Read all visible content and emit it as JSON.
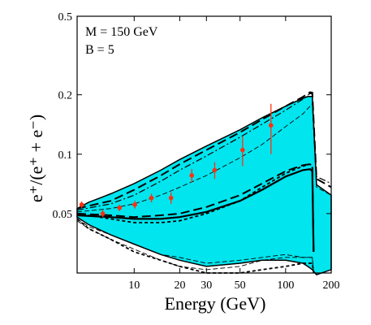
{
  "chart_data": {
    "type": "line",
    "xlabel": "Energy (GeV)",
    "ylabel": "e⁺/(e⁺ + e⁻)",
    "xscale": "log",
    "yscale": "log",
    "xlim": [
      4.2,
      200
    ],
    "ylim": [
      0.025,
      0.5
    ],
    "x_ticks": [
      10,
      20,
      30,
      50,
      100,
      200
    ],
    "y_ticks": [
      0.05,
      0.1,
      0.2,
      0.5
    ],
    "annotations": [
      {
        "text": "M = 150 GeV"
      },
      {
        "text": "B = 5"
      }
    ],
    "band": {
      "color": "#00e5ee",
      "x": [
        4.2,
        5,
        7,
        10,
        15,
        20,
        30,
        50,
        70,
        100,
        130,
        140,
        150,
        160,
        200
      ],
      "upper": [
        0.053,
        0.057,
        0.063,
        0.071,
        0.083,
        0.094,
        0.11,
        0.133,
        0.153,
        0.175,
        0.192,
        0.196,
        0.196,
        0.07,
        0.062
      ],
      "lower": [
        0.048,
        0.044,
        0.039,
        0.035,
        0.031,
        0.029,
        0.027,
        0.028,
        0.029,
        0.029,
        0.028,
        0.027,
        0.026,
        0.0245,
        0.026
      ]
    },
    "series": [
      {
        "style": "solid",
        "x": [
          4.2,
          7,
          10,
          15,
          20,
          30,
          50,
          70,
          100,
          130,
          145,
          150,
          153
        ],
        "y": [
          0.049,
          0.048,
          0.047,
          0.047,
          0.048,
          0.051,
          0.058,
          0.066,
          0.077,
          0.083,
          0.084,
          0.082,
          0.032
        ]
      },
      {
        "style": "dash",
        "x": [
          4.2,
          7,
          10,
          15,
          20,
          30,
          50,
          70,
          100,
          130,
          145,
          150,
          153
        ],
        "y": [
          0.05,
          0.049,
          0.048,
          0.049,
          0.05,
          0.054,
          0.062,
          0.071,
          0.082,
          0.088,
          0.089,
          0.087,
          0.032
        ]
      },
      {
        "style": "shortdash",
        "x": [
          4.2,
          7,
          10,
          15,
          20,
          30,
          50,
          70,
          100,
          130,
          145,
          150,
          153
        ],
        "y": [
          0.05,
          0.047,
          0.045,
          0.045,
          0.046,
          0.05,
          0.058,
          0.068,
          0.08,
          0.087,
          0.089,
          0.087,
          0.032
        ]
      },
      {
        "style": "dash",
        "x": [
          4.2,
          7,
          10,
          15,
          20,
          30,
          50,
          70,
          100,
          130,
          140,
          145,
          150,
          160,
          200
        ],
        "y": [
          0.053,
          0.058,
          0.066,
          0.078,
          0.089,
          0.105,
          0.129,
          0.15,
          0.175,
          0.195,
          0.203,
          0.206,
          0.205,
          0.075,
          0.068
        ]
      },
      {
        "style": "dashdot",
        "x": [
          4.2,
          7,
          10,
          15,
          20,
          30,
          50,
          70,
          100,
          130,
          140,
          145,
          150,
          160,
          200
        ],
        "y": [
          0.052,
          0.056,
          0.062,
          0.073,
          0.083,
          0.098,
          0.122,
          0.142,
          0.167,
          0.19,
          0.199,
          0.203,
          0.202,
          0.077,
          0.071
        ]
      },
      {
        "style": "thindash",
        "x": [
          4.2,
          7,
          10,
          15,
          20,
          30,
          50,
          70,
          100,
          130,
          145,
          150,
          160,
          200
        ],
        "y": [
          0.051,
          0.053,
          0.056,
          0.062,
          0.068,
          0.078,
          0.096,
          0.112,
          0.138,
          0.16,
          0.175,
          0.18,
          0.068,
          0.062
        ]
      },
      {
        "style": "thindash",
        "x": [
          4.2,
          5,
          7,
          10,
          15,
          20,
          30,
          50,
          70,
          100,
          130,
          145,
          150,
          153
        ],
        "y": [
          0.046,
          0.042,
          0.037,
          0.033,
          0.029,
          0.027,
          0.026,
          0.027,
          0.029,
          0.03,
          0.03,
          0.03,
          0.03,
          0.025
        ]
      },
      {
        "style": "thindash",
        "x": [
          4.2,
          5,
          7,
          10,
          15,
          20,
          30,
          50,
          70,
          100,
          130,
          145,
          150,
          153
        ],
        "y": [
          0.047,
          0.043,
          0.039,
          0.035,
          0.031,
          0.03,
          0.028,
          0.029,
          0.03,
          0.031,
          0.03,
          0.03,
          0.03,
          0.025
        ]
      },
      {
        "style": "shortdash",
        "x": [
          4.2,
          5,
          7,
          10,
          15,
          20,
          30,
          50,
          70,
          100,
          130,
          145,
          150,
          153
        ],
        "y": [
          0.047,
          0.042,
          0.037,
          0.032,
          0.029,
          0.027,
          0.025,
          0.025,
          0.026,
          0.027,
          0.028,
          0.028,
          0.028,
          0.025
        ]
      }
    ],
    "points": {
      "color": "#ff3010",
      "x": [
        4.5,
        6.2,
        8.0,
        10.1,
        13.0,
        17.5,
        24.0,
        34.0,
        52.0,
        80.0
      ],
      "y": [
        0.0555,
        0.05,
        0.0535,
        0.0555,
        0.06,
        0.06,
        0.078,
        0.083,
        0.105,
        0.14
      ],
      "err": [
        0.002,
        0.002,
        0.002,
        0.0025,
        0.003,
        0.004,
        0.006,
        0.008,
        0.018,
        0.04
      ]
    }
  }
}
